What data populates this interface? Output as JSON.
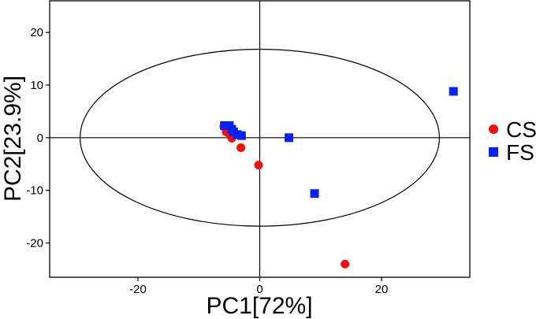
{
  "chart_data": {
    "type": "scatter",
    "xlabel": "PC1[72%]",
    "ylabel": "PC2[23.9%]",
    "xlim": [
      -34.5,
      34.5
    ],
    "ylim": [
      -26.5,
      26.0
    ],
    "xticks": [
      -20,
      0,
      20
    ],
    "xtick_labels": [
      "-20",
      "0",
      "20"
    ],
    "yticks": [
      -20,
      -10,
      0,
      10,
      20
    ],
    "ytick_labels": [
      "-20",
      "-10",
      "0",
      "10",
      "20"
    ],
    "grid": false,
    "reference_lines": {
      "x": 0,
      "y": 0
    },
    "confidence_ellipse": {
      "cx": 0,
      "cy": 0,
      "rx": 29.5,
      "ry": 16.8
    },
    "legend": "right",
    "series": [
      {
        "name": "CS",
        "marker": "circle",
        "color": "#ee1111",
        "x": [
          -5.9,
          -5.5,
          -4.9,
          -4.6,
          -3.1,
          -0.2,
          14.0
        ],
        "y": [
          2.1,
          1.1,
          0.6,
          -0.1,
          -1.9,
          -5.2,
          -24.0
        ]
      },
      {
        "name": "FS",
        "marker": "square",
        "color": "#0a22ee",
        "x": [
          -5.8,
          -5.0,
          -4.6,
          -4.3,
          -3.7,
          -3.0,
          4.8,
          9.0,
          31.8
        ],
        "y": [
          2.3,
          2.3,
          1.6,
          1.1,
          0.6,
          0.4,
          0.0,
          -10.6,
          8.8
        ]
      }
    ]
  }
}
